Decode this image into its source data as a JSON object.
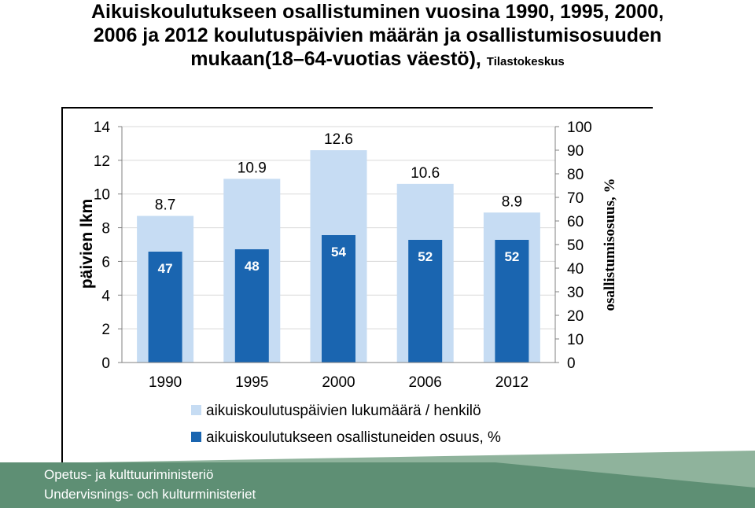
{
  "title": {
    "line1": "Aikuiskoulutukseen osallistuminen vuosina 1990, 1995, 2000,",
    "line2": "2006 ja 2012 koulutuspäivien määrän ja osallistumisosuuden",
    "line3": "mukaan(18–64-vuotias väestö),",
    "source": "Tilastokeskus"
  },
  "chart_data": {
    "type": "bar",
    "categories": [
      "1990",
      "1995",
      "2000",
      "2006",
      "2012"
    ],
    "series": [
      {
        "name": "aikuiskoulutuspäivien lukumäärä / henkilö",
        "axis": "left",
        "color": "#c6dcf3",
        "values": [
          8.7,
          10.9,
          12.6,
          10.6,
          8.9
        ],
        "labels": [
          "8.7",
          "10.9",
          "12.6",
          "10.6",
          "8.9"
        ]
      },
      {
        "name": "aikuiskoulutukseen osallistuneiden osuus, %",
        "axis": "right",
        "color": "#1a65b0",
        "values": [
          47,
          48,
          54,
          52,
          52
        ],
        "labels": [
          "47",
          "48",
          "54",
          "52",
          "52"
        ]
      }
    ],
    "ylabel": "päivien lkm",
    "ylabel_right": "osallistumisosuus, %",
    "ylim": [
      0,
      14
    ],
    "ylim_right": [
      0,
      100
    ],
    "yticks": [
      "0",
      "2",
      "4",
      "6",
      "8",
      "10",
      "12",
      "14"
    ],
    "yticks_right": [
      "0",
      "10",
      "20",
      "30",
      "40",
      "50",
      "60",
      "70",
      "80",
      "90",
      "100"
    ],
    "grid": "horizontal",
    "legend": "bottom"
  },
  "footer": {
    "line1": "Opetus- ja kulttuuriministeriö",
    "line2": "Undervisnings- och kulturministeriet",
    "colors": {
      "band": "#5e8f74",
      "band_light": "#8fb39c"
    }
  }
}
